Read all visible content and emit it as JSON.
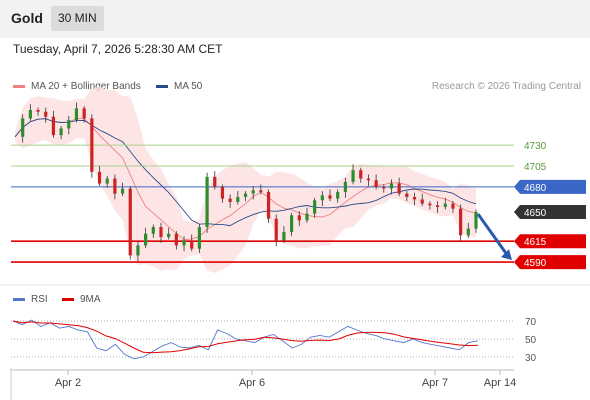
{
  "header": {
    "title": "Gold",
    "timeframe": "30 MIN"
  },
  "date_text": "Tuesday, April 7, 2026 5:28:30 AM CET",
  "legend": {
    "ma20": "MA 20 + Bollinger Bands",
    "ma50": "MA 50",
    "rsi": "RSI",
    "ma9": "9MA"
  },
  "credit": "Research © 2026 Trading Central",
  "colors": {
    "ma20": "#f08080",
    "ma50": "#2a4a8a",
    "band": "#fde0e0",
    "up": "#2e8b2e",
    "down": "#cc2222",
    "green_level": "#a8d08d",
    "blue_level": "#3a66c8",
    "red_level": "#e00000",
    "dark_label": "#333333",
    "rsi": "#5577cc",
    "rsi_ma": "#e00000"
  },
  "chart_data": [
    {
      "type": "candlestick",
      "x_ticks": [
        "Apr 2",
        "Apr 6",
        "Apr 7",
        "Apr 14"
      ],
      "ylim": [
        4565,
        4790
      ],
      "levels": [
        {
          "value": 4730,
          "label": "4730",
          "kind": "resistance-green"
        },
        {
          "value": 4705,
          "label": "4705",
          "kind": "resistance-green"
        },
        {
          "value": 4680,
          "label": "4680",
          "kind": "pivot-blue"
        },
        {
          "value": 4650,
          "label": "4650",
          "kind": "last-price"
        },
        {
          "value": 4615,
          "label": "4615",
          "kind": "support-red"
        },
        {
          "value": 4590,
          "label": "4590",
          "kind": "support-red"
        }
      ],
      "price_path": [
        4740,
        4762,
        4772,
        4770,
        4764,
        4742,
        4750,
        4760,
        4774,
        4762,
        4698,
        4684,
        4690,
        4672,
        4678,
        4598,
        4610,
        4624,
        4632,
        4620,
        4624,
        4610,
        4616,
        4606,
        4632,
        4692,
        4680,
        4666,
        4662,
        4668,
        4672,
        4676,
        4674,
        4642,
        4616,
        4626,
        4646,
        4640,
        4648,
        4664,
        4670,
        4666,
        4674,
        4686,
        4700,
        4690,
        4688,
        4680,
        4678,
        4684,
        4672,
        4668,
        4665,
        4660,
        4658,
        4656,
        4660,
        4654,
        4622,
        4630,
        4650
      ],
      "forecast": {
        "from": 4650,
        "to": 4590
      }
    },
    {
      "type": "line",
      "name": "RSI",
      "ylim": [
        20,
        80
      ],
      "y_ticks": [
        30,
        50,
        70
      ],
      "values": [
        70,
        66,
        71,
        64,
        68,
        62,
        64,
        60,
        58,
        40,
        37,
        44,
        33,
        28,
        30,
        36,
        42,
        46,
        41,
        40,
        43,
        38,
        60,
        56,
        50,
        48,
        46,
        52,
        55,
        48,
        40,
        44,
        52,
        54,
        52,
        58,
        64,
        60,
        56,
        54,
        50,
        48,
        46,
        50,
        46,
        44,
        42,
        40,
        38,
        46,
        48
      ]
    }
  ]
}
